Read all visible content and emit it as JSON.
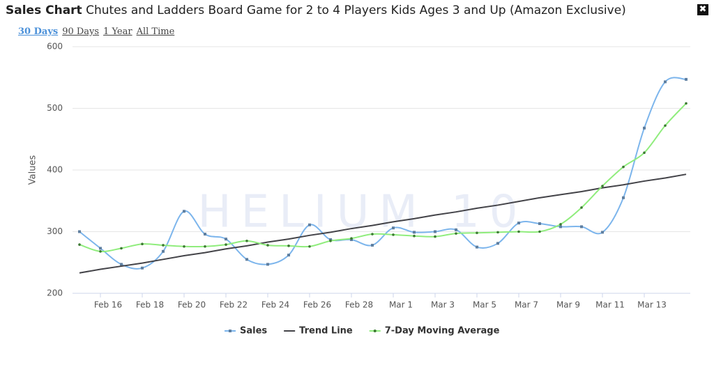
{
  "header": {
    "label": "Sales Chart",
    "title": "Chutes and Ladders Board Game for 2 to 4 Players Kids Ages 3 and Up (Amazon Exclusive)"
  },
  "close_button": "✖",
  "tabs": {
    "items": [
      "30 Days",
      "90 Days",
      "1 Year",
      "All Time"
    ],
    "active": 0
  },
  "watermark": "HELIUM 10",
  "chart_data": {
    "type": "line",
    "y_label": "Values",
    "categories": [
      null,
      "Feb 16",
      null,
      "Feb 18",
      null,
      "Feb 20",
      null,
      "Feb 22",
      null,
      "Feb 24",
      null,
      "Feb 26",
      null,
      "Feb 28",
      null,
      "Mar 1",
      null,
      "Mar 3",
      null,
      "Mar 5",
      null,
      "Mar 7",
      null,
      "Mar 9",
      null,
      "Mar 11",
      null,
      "Mar 13",
      null,
      null
    ],
    "ylim": [
      200,
      600
    ],
    "yticks": [
      200,
      300,
      400,
      500,
      600
    ],
    "grid": true,
    "series": [
      {
        "name": "Sales",
        "color": "#7cb5ec",
        "marker": "square",
        "smooth": true,
        "values": [
          300,
          273,
          247,
          241,
          268,
          333,
          296,
          288,
          255,
          247,
          262,
          311,
          287,
          287,
          278,
          306,
          299,
          300,
          303,
          275,
          281,
          314,
          313,
          308,
          308,
          299,
          355,
          468,
          543,
          547
        ]
      },
      {
        "name": "Trend Line",
        "color": "#434348",
        "marker": "none",
        "smooth": false,
        "values": [
          233,
          239,
          244,
          249,
          255,
          261,
          266,
          272,
          277,
          283,
          288,
          294,
          299,
          305,
          310,
          316,
          321,
          327,
          332,
          338,
          343,
          349,
          355,
          360,
          365,
          371,
          376,
          382,
          387,
          393
        ]
      },
      {
        "name": "7-Day Moving Average",
        "color": "#90ed7d",
        "marker": "circle",
        "smooth": true,
        "values": [
          279,
          268,
          273,
          280,
          278,
          276,
          276,
          279,
          285,
          278,
          277,
          276,
          285,
          289,
          296,
          295,
          293,
          292,
          297,
          298,
          299,
          300,
          300,
          312,
          339,
          374,
          405,
          428,
          472,
          508
        ]
      }
    ]
  }
}
